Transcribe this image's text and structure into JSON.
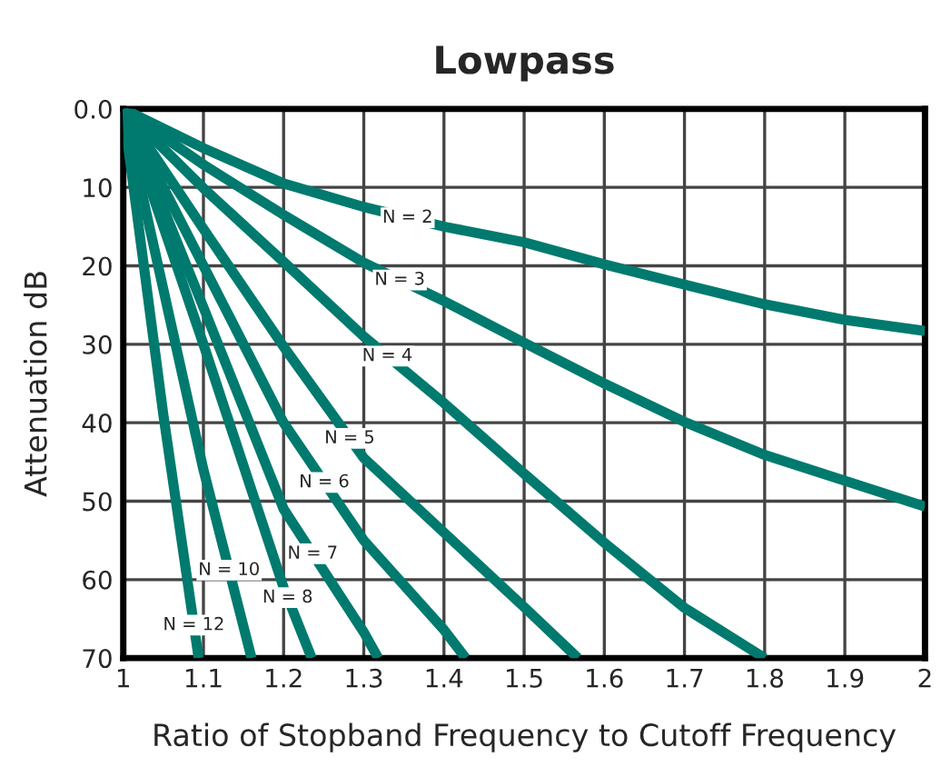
{
  "chart_data": {
    "type": "line",
    "title": "Lowpass",
    "xlabel": "Ratio of Stopband Frequency to Cutoff Frequency",
    "ylabel": "Attenuation dB",
    "xlim": [
      1,
      2
    ],
    "xticks": [
      1,
      1.1,
      1.2,
      1.3,
      1.4,
      1.5,
      1.6,
      1.7,
      1.8,
      1.9,
      2
    ],
    "ylim": [
      70,
      0
    ],
    "yticks": [
      {
        "value": 0,
        "label": "0.0"
      },
      10,
      20,
      30,
      40,
      50,
      60,
      70
    ],
    "grid": true,
    "legend": false,
    "marker": "none",
    "line_style": "solid",
    "series": [
      {
        "name": "N = 2",
        "color": "#007a6e",
        "x": [
          1,
          1.1,
          1.2,
          1.3,
          1.4,
          1.5,
          1.6,
          1.7,
          1.8,
          1.9,
          2
        ],
        "values": [
          0,
          5,
          9.5,
          12.5,
          15,
          17,
          19.8,
          22.4,
          24.9,
          26.9,
          28.3
        ]
      },
      {
        "name": "N = 3",
        "color": "#007a6e",
        "x": [
          1,
          1.1,
          1.2,
          1.3,
          1.4,
          1.5,
          1.6,
          1.7,
          1.8,
          1.9,
          2
        ],
        "values": [
          0,
          7.1,
          13.5,
          19.6,
          24.5,
          29.8,
          35,
          39.9,
          44.1,
          47.4,
          50.7
        ]
      },
      {
        "name": "N = 4",
        "color": "#007a6e",
        "x": [
          1,
          1.1,
          1.2,
          1.3,
          1.4,
          1.5,
          1.6,
          1.7,
          1.8
        ],
        "values": [
          0,
          10.1,
          19.5,
          29,
          37.5,
          46.5,
          55.3,
          63.6,
          70
        ]
      },
      {
        "name": "N = 5",
        "color": "#007a6e",
        "x": [
          1,
          1.1,
          1.2,
          1.3,
          1.4,
          1.5,
          1.567
        ],
        "values": [
          0,
          15.3,
          30.3,
          44.5,
          54,
          63.5,
          70
        ]
      },
      {
        "name": "N = 6",
        "color": "#007a6e",
        "x": [
          1,
          1.1,
          1.2,
          1.3,
          1.4,
          1.427
        ],
        "values": [
          0,
          20,
          40,
          55,
          66.4,
          70
        ]
      },
      {
        "name": "N = 7",
        "color": "#007a6e",
        "x": [
          1,
          1.1,
          1.2,
          1.3,
          1.318
        ],
        "values": [
          0,
          25.3,
          51,
          66.7,
          70
        ]
      },
      {
        "name": "N = 8",
        "color": "#007a6e",
        "x": [
          1,
          1.1,
          1.2,
          1.235
        ],
        "values": [
          0,
          30,
          61,
          70
        ]
      },
      {
        "name": "N = 10",
        "color": "#007a6e",
        "x": [
          1,
          1.1,
          1.16
        ],
        "values": [
          0,
          46,
          70
        ]
      },
      {
        "name": "N = 12",
        "color": "#007a6e",
        "x": [
          1,
          1.05,
          1.094
        ],
        "values": [
          0,
          39,
          70
        ]
      }
    ]
  }
}
